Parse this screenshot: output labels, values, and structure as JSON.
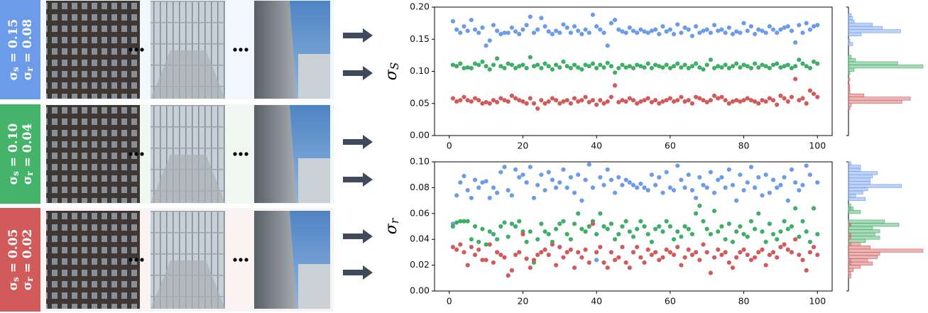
{
  "panels": {
    "rows": [
      {
        "s_symbol": "σ",
        "s_sub": "s",
        "s_text": " = 0.15",
        "r_symbol": "σ",
        "r_sub": "r",
        "r_text": " = 0.08",
        "color": "#6c9bea"
      },
      {
        "s_symbol": "σ",
        "s_sub": "s",
        "s_text": " = 0.10",
        "r_symbol": "σ",
        "r_sub": "r",
        "r_text": " = 0.04",
        "color": "#45b36a"
      },
      {
        "s_symbol": "σ",
        "s_sub": "s",
        "s_text": " = 0.05",
        "r_symbol": "σ",
        "r_sub": "r",
        "r_text": " = 0.02",
        "color": "#d15b5b"
      }
    ]
  },
  "chart_data": [
    {
      "type": "scatter",
      "y_symbol": "σ",
      "y_sub": "S",
      "x": [
        1,
        2,
        3,
        4,
        5,
        6,
        7,
        8,
        9,
        10,
        11,
        12,
        13,
        14,
        15,
        16,
        17,
        18,
        19,
        20,
        21,
        22,
        23,
        24,
        25,
        26,
        27,
        28,
        29,
        30,
        31,
        32,
        33,
        34,
        35,
        36,
        37,
        38,
        39,
        40,
        41,
        42,
        43,
        44,
        45,
        46,
        47,
        48,
        49,
        50,
        51,
        52,
        53,
        54,
        55,
        56,
        57,
        58,
        59,
        60,
        61,
        62,
        63,
        64,
        65,
        66,
        67,
        68,
        69,
        70,
        71,
        72,
        73,
        74,
        75,
        76,
        77,
        78,
        79,
        80,
        81,
        82,
        83,
        84,
        85,
        86,
        87,
        88,
        89,
        90,
        91,
        92,
        93,
        94,
        95,
        96,
        97,
        98,
        99,
        100
      ],
      "xlim": [
        -4,
        104
      ],
      "xticks": [
        0,
        20,
        40,
        60,
        80,
        100
      ],
      "ylim": [
        0,
        0.2
      ],
      "yticks": [
        {
          "value": 0,
          "label": "0.00"
        },
        {
          "value": 0.05,
          "label": "0.05"
        },
        {
          "value": 0.1,
          "label": "0.10"
        },
        {
          "value": 0.15,
          "label": "0.15"
        },
        {
          "value": 0.2,
          "label": "0.20"
        }
      ],
      "series": [
        {
          "color": "#6c9bea",
          "values": [
            0.178,
            0.165,
            0.16,
            0.17,
            0.163,
            0.18,
            0.165,
            0.16,
            0.168,
            0.14,
            0.148,
            0.172,
            0.163,
            0.158,
            0.16,
            0.16,
            0.168,
            0.162,
            0.158,
            0.165,
            0.172,
            0.185,
            0.16,
            0.165,
            0.183,
            0.17,
            0.162,
            0.158,
            0.163,
            0.16,
            0.173,
            0.168,
            0.16,
            0.17,
            0.163,
            0.158,
            0.165,
            0.16,
            0.188,
            0.17,
            0.165,
            0.16,
            0.14,
            0.175,
            0.18,
            0.165,
            0.162,
            0.16,
            0.168,
            0.163,
            0.16,
            0.165,
            0.162,
            0.16,
            0.163,
            0.165,
            0.158,
            0.17,
            0.162,
            0.165,
            0.158,
            0.173,
            0.16,
            0.168,
            0.165,
            0.155,
            0.17,
            0.16,
            0.163,
            0.165,
            0.16,
            0.172,
            0.163,
            0.165,
            0.16,
            0.168,
            0.158,
            0.162,
            0.16,
            0.175,
            0.163,
            0.17,
            0.158,
            0.165,
            0.163,
            0.16,
            0.17,
            0.165,
            0.16,
            0.165,
            0.168,
            0.17,
            0.163,
            0.145,
            0.172,
            0.16,
            0.175,
            0.165,
            0.17,
            0.172
          ]
        },
        {
          "color": "#3fae66",
          "values": [
            0.11,
            0.108,
            0.112,
            0.105,
            0.106,
            0.105,
            0.112,
            0.11,
            0.115,
            0.108,
            0.103,
            0.11,
            0.12,
            0.108,
            0.105,
            0.112,
            0.11,
            0.105,
            0.108,
            0.11,
            0.105,
            0.122,
            0.108,
            0.11,
            0.105,
            0.112,
            0.108,
            0.103,
            0.11,
            0.106,
            0.115,
            0.108,
            0.105,
            0.11,
            0.106,
            0.103,
            0.11,
            0.108,
            0.112,
            0.105,
            0.11,
            0.106,
            0.113,
            0.108,
            0.098,
            0.105,
            0.11,
            0.106,
            0.108,
            0.105,
            0.11,
            0.108,
            0.106,
            0.112,
            0.105,
            0.11,
            0.108,
            0.106,
            0.11,
            0.105,
            0.108,
            0.112,
            0.106,
            0.11,
            0.105,
            0.108,
            0.112,
            0.106,
            0.103,
            0.11,
            0.118,
            0.105,
            0.108,
            0.106,
            0.11,
            0.105,
            0.108,
            0.112,
            0.106,
            0.11,
            0.108,
            0.105,
            0.112,
            0.106,
            0.11,
            0.108,
            0.105,
            0.11,
            0.112,
            0.106,
            0.108,
            0.11,
            0.105,
            0.108,
            0.118,
            0.112,
            0.108,
            0.105,
            0.115,
            0.112
          ]
        },
        {
          "color": "#d15b5b",
          "values": [
            0.058,
            0.053,
            0.055,
            0.06,
            0.055,
            0.053,
            0.058,
            0.055,
            0.05,
            0.052,
            0.05,
            0.055,
            0.052,
            0.058,
            0.055,
            0.053,
            0.062,
            0.058,
            0.055,
            0.053,
            0.05,
            0.058,
            0.05,
            0.042,
            0.055,
            0.05,
            0.053,
            0.058,
            0.055,
            0.05,
            0.053,
            0.055,
            0.05,
            0.058,
            0.053,
            0.055,
            0.06,
            0.052,
            0.055,
            0.048,
            0.055,
            0.05,
            0.053,
            0.06,
            0.078,
            0.052,
            0.055,
            0.053,
            0.058,
            0.055,
            0.05,
            0.053,
            0.055,
            0.058,
            0.052,
            0.055,
            0.05,
            0.053,
            0.055,
            0.058,
            0.053,
            0.055,
            0.06,
            0.053,
            0.055,
            0.05,
            0.06,
            0.058,
            0.055,
            0.052,
            0.055,
            0.062,
            0.058,
            0.06,
            0.055,
            0.05,
            0.053,
            0.055,
            0.053,
            0.055,
            0.058,
            0.055,
            0.053,
            0.05,
            0.055,
            0.053,
            0.058,
            0.055,
            0.048,
            0.062,
            0.058,
            0.053,
            0.06,
            0.088,
            0.055,
            0.058,
            0.05,
            0.07,
            0.065,
            0.06
          ]
        }
      ]
    },
    {
      "type": "scatter",
      "y_symbol": "σ",
      "y_sub": "r",
      "x": [
        1,
        2,
        3,
        4,
        5,
        6,
        7,
        8,
        9,
        10,
        11,
        12,
        13,
        14,
        15,
        16,
        17,
        18,
        19,
        20,
        21,
        22,
        23,
        24,
        25,
        26,
        27,
        28,
        29,
        30,
        31,
        32,
        33,
        34,
        35,
        36,
        37,
        38,
        39,
        40,
        41,
        42,
        43,
        44,
        45,
        46,
        47,
        48,
        49,
        50,
        51,
        52,
        53,
        54,
        55,
        56,
        57,
        58,
        59,
        60,
        61,
        62,
        63,
        64,
        65,
        66,
        67,
        68,
        69,
        70,
        71,
        72,
        73,
        74,
        75,
        76,
        77,
        78,
        79,
        80,
        81,
        82,
        83,
        84,
        85,
        86,
        87,
        88,
        89,
        90,
        91,
        92,
        93,
        94,
        95,
        96,
        97,
        98,
        99,
        100
      ],
      "xlim": [
        -4,
        104
      ],
      "xticks": [
        0,
        20,
        40,
        60,
        80,
        100
      ],
      "ylim": [
        0,
        0.1
      ],
      "yticks": [
        {
          "value": 0,
          "label": "0.00"
        },
        {
          "value": 0.02,
          "label": "0.02"
        },
        {
          "value": 0.04,
          "label": "0.04"
        },
        {
          "value": 0.06,
          "label": "0.06"
        },
        {
          "value": 0.08,
          "label": "0.08"
        },
        {
          "value": 0.1,
          "label": "0.10"
        }
      ],
      "series": [
        {
          "color": "#6c9bea",
          "values": [
            0.052,
            0.074,
            0.084,
            0.089,
            0.078,
            0.072,
            0.086,
            0.08,
            0.084,
            0.085,
            0.072,
            0.08,
            0.076,
            0.092,
            0.096,
            0.078,
            0.074,
            0.094,
            0.088,
            0.09,
            0.084,
            0.096,
            0.072,
            0.082,
            0.09,
            0.078,
            0.092,
            0.086,
            0.08,
            0.084,
            0.094,
            0.08,
            0.088,
            0.076,
            0.09,
            0.07,
            0.086,
            0.098,
            0.08,
            0.024,
            0.088,
            0.082,
            0.094,
            0.086,
            0.076,
            0.088,
            0.082,
            0.086,
            0.084,
            0.082,
            0.08,
            0.083,
            0.08,
            0.078,
            0.09,
            0.082,
            0.088,
            0.076,
            0.092,
            0.08,
            0.078,
            0.097,
            0.086,
            0.08,
            0.09,
            0.078,
            0.072,
            0.088,
            0.082,
            0.08,
            0.092,
            0.076,
            0.086,
            0.088,
            0.08,
            0.094,
            0.082,
            0.07,
            0.09,
            0.078,
            0.084,
            0.096,
            0.08,
            0.088,
            0.074,
            0.09,
            0.076,
            0.086,
            0.08,
            0.082,
            0.088,
            0.07,
            0.094,
            0.084,
            0.078,
            0.082,
            0.097,
            0.09,
            0.064,
            0.084
          ]
        },
        {
          "color": "#3fae66",
          "values": [
            0.05,
            0.053,
            0.054,
            0.054,
            0.054,
            0.04,
            0.05,
            0.038,
            0.048,
            0.036,
            0.046,
            0.044,
            0.04,
            0.05,
            0.053,
            0.042,
            0.052,
            0.05,
            0.054,
            0.046,
            0.038,
            0.046,
            0.022,
            0.04,
            0.052,
            0.046,
            0.044,
            0.038,
            0.048,
            0.052,
            0.054,
            0.044,
            0.04,
            0.052,
            0.06,
            0.048,
            0.046,
            0.05,
            0.054,
            0.044,
            0.06,
            0.05,
            0.048,
            0.052,
            0.04,
            0.044,
            0.05,
            0.054,
            0.046,
            0.042,
            0.048,
            0.054,
            0.05,
            0.044,
            0.038,
            0.048,
            0.05,
            0.046,
            0.054,
            0.05,
            0.04,
            0.046,
            0.042,
            0.05,
            0.048,
            0.044,
            0.06,
            0.066,
            0.054,
            0.048,
            0.044,
            0.062,
            0.046,
            0.05,
            0.04,
            0.052,
            0.038,
            0.046,
            0.05,
            0.044,
            0.042,
            0.054,
            0.048,
            0.06,
            0.046,
            0.038,
            0.052,
            0.044,
            0.04,
            0.046,
            0.054,
            0.048,
            0.05,
            0.064,
            0.042,
            0.054,
            0.046,
            0.038,
            0.064,
            0.044
          ]
        },
        {
          "color": "#d15b5b",
          "values": [
            0.034,
            0.032,
            0.036,
            0.03,
            0.02,
            0.034,
            0.028,
            0.032,
            0.024,
            0.024,
            0.036,
            0.022,
            0.03,
            0.028,
            0.026,
            0.012,
            0.016,
            0.028,
            0.03,
            0.044,
            0.025,
            0.018,
            0.024,
            0.028,
            0.03,
            0.032,
            0.028,
            0.036,
            0.02,
            0.034,
            0.026,
            0.03,
            0.032,
            0.018,
            0.03,
            0.026,
            0.032,
            0.022,
            0.052,
            0.03,
            0.034,
            0.022,
            0.018,
            0.03,
            0.024,
            0.026,
            0.034,
            0.022,
            0.018,
            0.03,
            0.034,
            0.026,
            0.022,
            0.032,
            0.028,
            0.03,
            0.024,
            0.026,
            0.032,
            0.03,
            0.028,
            0.034,
            0.02,
            0.026,
            0.032,
            0.028,
            0.03,
            0.024,
            0.036,
            0.03,
            0.014,
            0.026,
            0.032,
            0.028,
            0.03,
            0.022,
            0.018,
            0.026,
            0.03,
            0.032,
            0.028,
            0.024,
            0.026,
            0.03,
            0.032,
            0.02,
            0.028,
            0.03,
            0.026,
            0.034,
            0.036,
            0.032,
            0.03,
            0.04,
            0.028,
            0.024,
            0.016,
            0.03,
            0.034,
            0.028
          ]
        }
      ]
    }
  ]
}
